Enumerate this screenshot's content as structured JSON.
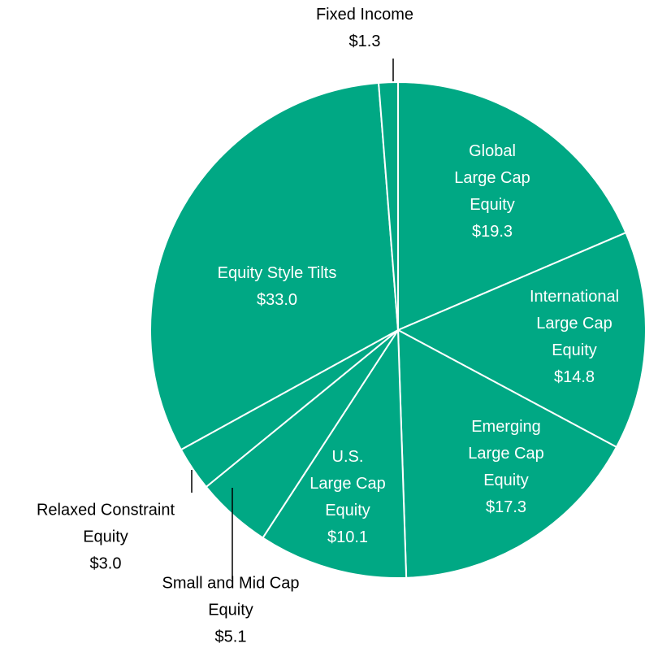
{
  "chart_data": {
    "type": "pie",
    "categories": [
      "Global\nLarge Cap\nEquity",
      "International\nLarge Cap\nEquity",
      "Emerging\nLarge Cap\nEquity",
      "U.S.\nLarge Cap\nEquity",
      "Small and Mid Cap\nEquity",
      "Relaxed Constraint\nEquity",
      "Equity Style Tilts",
      "Fixed Income"
    ],
    "values": [
      19.3,
      14.8,
      17.3,
      10.1,
      5.1,
      3.0,
      33.0,
      1.3
    ],
    "value_labels": [
      "$19.3",
      "$14.8",
      "$17.3",
      "$10.1",
      "$5.1",
      "$3.0",
      "$33.0",
      "$1.3"
    ],
    "color": "#00a884"
  }
}
